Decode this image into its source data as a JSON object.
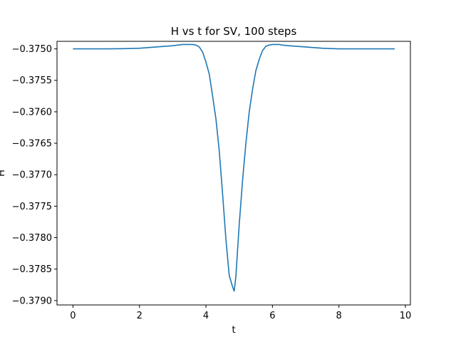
{
  "chart_data": {
    "type": "line",
    "title": "H vs t for SV, 100 steps",
    "xlabel": "t",
    "ylabel": "H",
    "xlim": [
      -0.48,
      10.15
    ],
    "ylim": [
      -0.37907,
      -0.37488
    ],
    "x_ticks": [
      0,
      2,
      4,
      6,
      8,
      10
    ],
    "x_tick_labels": [
      "0",
      "2",
      "4",
      "6",
      "8",
      "10"
    ],
    "y_ticks": [
      -0.375,
      -0.3755,
      -0.376,
      -0.3765,
      -0.377,
      -0.3775,
      -0.378,
      -0.3785,
      -0.379
    ],
    "y_tick_labels": [
      "−0.3750",
      "−0.3755",
      "−0.3760",
      "−0.3765",
      "−0.3770",
      "−0.3775",
      "−0.3780",
      "−0.3785",
      "−0.3790"
    ],
    "grid": false,
    "legend": "none",
    "series": [
      {
        "color": "#1f77b4",
        "x": [
          0.0,
          0.5,
          1.0,
          1.5,
          2.0,
          2.5,
          3.0,
          3.3,
          3.5,
          3.6,
          3.7,
          3.8,
          3.9,
          4.0,
          4.1,
          4.2,
          4.3,
          4.4,
          4.5,
          4.6,
          4.7,
          4.8,
          4.85,
          4.9,
          5.0,
          5.1,
          5.2,
          5.3,
          5.4,
          5.5,
          5.6,
          5.7,
          5.8,
          5.9,
          6.0,
          6.1,
          6.2,
          6.3,
          6.5,
          7.0,
          7.5,
          8.0,
          8.5,
          9.0,
          9.68
        ],
        "y": [
          -0.375,
          -0.375,
          -0.375,
          -0.374997,
          -0.37499,
          -0.37497,
          -0.37495,
          -0.37493,
          -0.37493,
          -0.37493,
          -0.37494,
          -0.37497,
          -0.37505,
          -0.37521,
          -0.3754,
          -0.37575,
          -0.37611,
          -0.37662,
          -0.3773,
          -0.37802,
          -0.3786,
          -0.37878,
          -0.37885,
          -0.37862,
          -0.3778,
          -0.3771,
          -0.37651,
          -0.37601,
          -0.37565,
          -0.37535,
          -0.37517,
          -0.37503,
          -0.37496,
          -0.37494,
          -0.37493,
          -0.37493,
          -0.37493,
          -0.37494,
          -0.37495,
          -0.37497,
          -0.37499,
          -0.375,
          -0.375,
          -0.375,
          -0.375
        ]
      }
    ]
  }
}
